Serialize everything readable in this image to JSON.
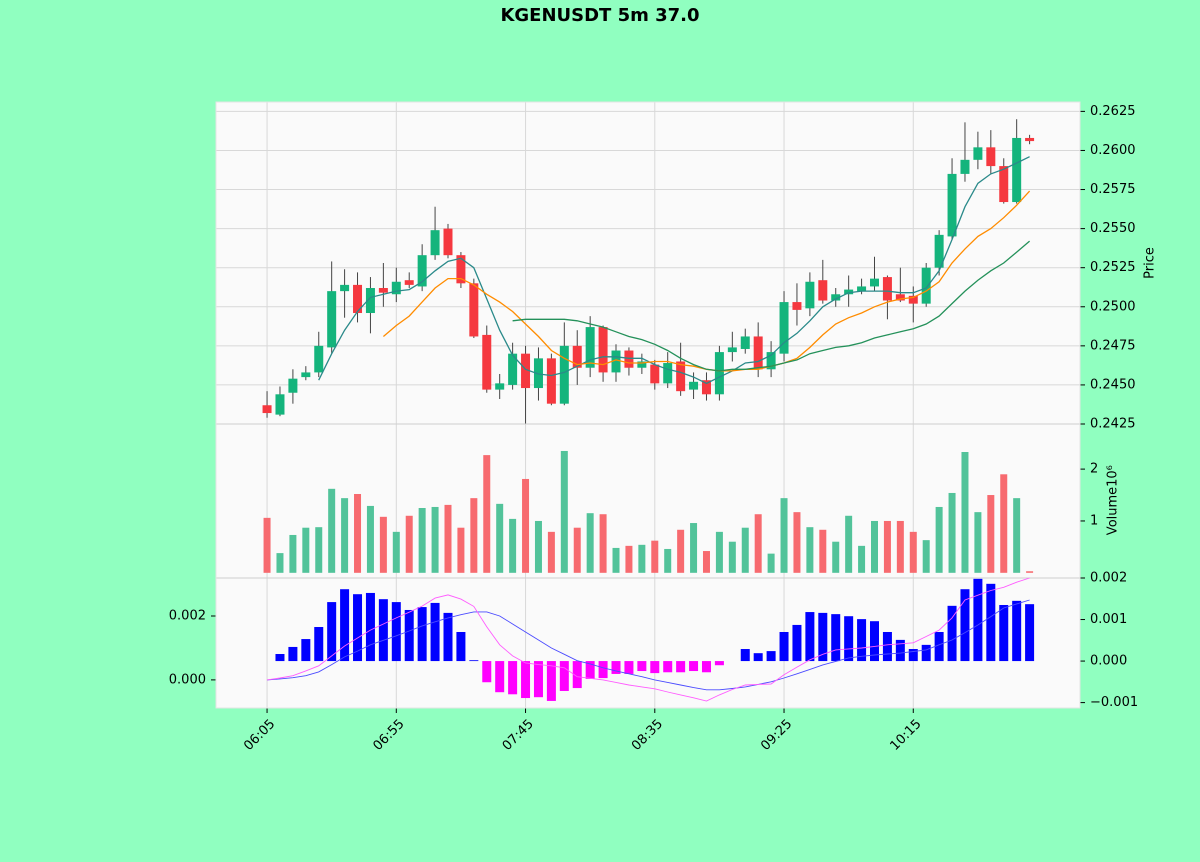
{
  "chart_data": [
    {
      "type": "candlestick",
      "title": "KGENUSDT 5m 37.0",
      "ylabel": "Price",
      "xlim": [
        -3.95,
        62.9
      ],
      "ylim": [
        0.2425,
        0.2631
      ],
      "grid": true,
      "up_color": "#14b47c",
      "down_color": "#f5383f",
      "yticks": [
        {
          "value": 0.2425,
          "label": "0.2425"
        },
        {
          "value": 0.245,
          "label": "0.2450"
        },
        {
          "value": 0.2475,
          "label": "0.2475"
        },
        {
          "value": 0.25,
          "label": "0.2500"
        },
        {
          "value": 0.2525,
          "label": "0.2525"
        },
        {
          "value": 0.255,
          "label": "0.2550"
        },
        {
          "value": 0.2575,
          "label": "0.2575"
        },
        {
          "value": 0.26,
          "label": "0.2600"
        },
        {
          "value": 0.2625,
          "label": "0.2625"
        }
      ],
      "open": [
        0.2437,
        0.2431,
        0.2445,
        0.2455,
        0.2458,
        0.2474,
        0.251,
        0.2514,
        0.2496,
        0.2512,
        0.2508,
        0.2517,
        0.2513,
        0.2533,
        0.255,
        0.2533,
        0.2515,
        0.2482,
        0.2447,
        0.245,
        0.247,
        0.2448,
        0.2467,
        0.2438,
        0.2475,
        0.2461,
        0.2487,
        0.2458,
        0.2472,
        0.2461,
        0.2463,
        0.2451,
        0.2465,
        0.2447,
        0.2453,
        0.2444,
        0.2471,
        0.2473,
        0.2481,
        0.246,
        0.247,
        0.2503,
        0.2499,
        0.2517,
        0.2504,
        0.2508,
        0.251,
        0.2513,
        0.2519,
        0.2508,
        0.2507,
        0.2502,
        0.2525,
        0.2545,
        0.2585,
        0.2594,
        0.2602,
        0.259,
        0.2567,
        0.2608
      ],
      "high": [
        0.2446,
        0.2449,
        0.246,
        0.2462,
        0.2484,
        0.2529,
        0.2524,
        0.2522,
        0.2519,
        0.2528,
        0.2525,
        0.2522,
        0.254,
        0.2564,
        0.2553,
        0.2535,
        0.2518,
        0.2488,
        0.2457,
        0.2477,
        0.2475,
        0.2474,
        0.247,
        0.249,
        0.2485,
        0.2494,
        0.2488,
        0.2476,
        0.2474,
        0.247,
        0.2466,
        0.2471,
        0.2477,
        0.2458,
        0.2458,
        0.2475,
        0.2484,
        0.2486,
        0.249,
        0.2478,
        0.251,
        0.2515,
        0.2522,
        0.253,
        0.2512,
        0.252,
        0.2518,
        0.2532,
        0.252,
        0.2525,
        0.2513,
        0.2528,
        0.2549,
        0.2595,
        0.2618,
        0.2612,
        0.2613,
        0.2595,
        0.262,
        0.261
      ],
      "low": [
        0.2429,
        0.243,
        0.2438,
        0.2453,
        0.2455,
        0.247,
        0.2493,
        0.249,
        0.2483,
        0.25,
        0.2503,
        0.2512,
        0.251,
        0.253,
        0.2531,
        0.2512,
        0.248,
        0.2445,
        0.2441,
        0.2447,
        0.2425,
        0.244,
        0.2437,
        0.2437,
        0.245,
        0.2455,
        0.2452,
        0.2452,
        0.2456,
        0.2457,
        0.2447,
        0.2448,
        0.2443,
        0.2441,
        0.244,
        0.244,
        0.2465,
        0.247,
        0.2455,
        0.2455,
        0.2465,
        0.2488,
        0.2494,
        0.2502,
        0.25,
        0.25,
        0.2508,
        0.251,
        0.2492,
        0.2503,
        0.249,
        0.25,
        0.252,
        0.2543,
        0.258,
        0.2588,
        0.2585,
        0.2566,
        0.2566,
        0.2604
      ],
      "close": [
        0.2432,
        0.2444,
        0.2454,
        0.2458,
        0.2475,
        0.251,
        0.2514,
        0.2496,
        0.2512,
        0.2509,
        0.2516,
        0.2514,
        0.2533,
        0.2549,
        0.2533,
        0.2515,
        0.2481,
        0.2447,
        0.2451,
        0.247,
        0.2448,
        0.2467,
        0.2438,
        0.2475,
        0.2461,
        0.2487,
        0.2458,
        0.2472,
        0.2461,
        0.2465,
        0.2451,
        0.2464,
        0.2446,
        0.2452,
        0.2444,
        0.2471,
        0.2474,
        0.2481,
        0.246,
        0.2471,
        0.2503,
        0.2498,
        0.2516,
        0.2504,
        0.2508,
        0.2511,
        0.2513,
        0.2518,
        0.2504,
        0.2504,
        0.2502,
        0.2525,
        0.2546,
        0.2585,
        0.2594,
        0.2602,
        0.259,
        0.2567,
        0.2608,
        0.2606
      ],
      "series": [
        {
          "color": "#2a8a8a",
          "values": [
            null,
            null,
            null,
            null,
            0.2453,
            0.247,
            0.2485,
            0.2497,
            0.2506,
            0.2508,
            0.251,
            0.2511,
            0.2516,
            0.2523,
            0.2529,
            0.2531,
            0.2525,
            0.2505,
            0.2485,
            0.2469,
            0.246,
            0.2457,
            0.2456,
            0.2458,
            0.2462,
            0.2466,
            0.2468,
            0.2468,
            0.2467,
            0.2467,
            0.2463,
            0.246,
            0.2458,
            0.2455,
            0.2451,
            0.2455,
            0.2459,
            0.2464,
            0.2465,
            0.2469,
            0.2477,
            0.2483,
            0.2491,
            0.25,
            0.2505,
            0.2509,
            0.251,
            0.251,
            0.251,
            0.2509,
            0.2509,
            0.2512,
            0.2523,
            0.2543,
            0.2564,
            0.2579,
            0.2585,
            0.2588,
            0.2592,
            0.2596
          ]
        },
        {
          "color": "#ff8c00",
          "values": [
            null,
            null,
            null,
            null,
            null,
            null,
            null,
            null,
            null,
            0.2481,
            0.2488,
            0.2494,
            0.2503,
            0.2512,
            0.2518,
            0.2518,
            0.2514,
            0.2508,
            0.2503,
            0.2497,
            0.2489,
            0.2481,
            0.2472,
            0.2467,
            0.2463,
            0.2464,
            0.2463,
            0.2466,
            0.2464,
            0.2464,
            0.2465,
            0.2465,
            0.2463,
            0.2462,
            0.246,
            0.2459,
            0.2459,
            0.246,
            0.246,
            0.2462,
            0.2464,
            0.2467,
            0.2474,
            0.2482,
            0.2489,
            0.2493,
            0.2496,
            0.25,
            0.2503,
            0.2505,
            0.2506,
            0.251,
            0.2516,
            0.2528,
            0.2537,
            0.2545,
            0.255,
            0.2557,
            0.2565,
            0.2574
          ]
        },
        {
          "color": "#24915a",
          "values": [
            null,
            null,
            null,
            null,
            null,
            null,
            null,
            null,
            null,
            null,
            null,
            null,
            null,
            null,
            null,
            null,
            null,
            null,
            null,
            0.2491,
            0.2492,
            0.2492,
            0.2492,
            0.2492,
            0.2491,
            0.2489,
            0.2487,
            0.2484,
            0.2481,
            0.2479,
            0.2476,
            0.2472,
            0.2467,
            0.2463,
            0.246,
            0.2459,
            0.246,
            0.246,
            0.2461,
            0.2462,
            0.2464,
            0.2466,
            0.247,
            0.2472,
            0.2474,
            0.2475,
            0.2477,
            0.248,
            0.2482,
            0.2484,
            0.2486,
            0.2489,
            0.2494,
            0.2502,
            0.251,
            0.2517,
            0.2523,
            0.2528,
            0.2535,
            0.2542
          ]
        }
      ]
    },
    {
      "type": "bar",
      "ylabel": "Volume",
      "offset_label": "10⁶",
      "xlim": [
        -3.95,
        62.9
      ],
      "ylim": [
        -0.1,
        2.87
      ],
      "yticks": [
        1,
        2
      ],
      "up_color": "#52c39a",
      "down_color": "#f76a6f",
      "values": [
        1.06,
        0.38,
        0.73,
        0.87,
        0.88,
        1.62,
        1.44,
        1.52,
        1.29,
        1.08,
        0.79,
        1.1,
        1.25,
        1.27,
        1.31,
        0.87,
        1.44,
        2.27,
        1.33,
        1.04,
        1.81,
        1.0,
        0.79,
        2.35,
        0.87,
        1.15,
        1.13,
        0.48,
        0.52,
        0.54,
        0.62,
        0.46,
        0.83,
        0.96,
        0.42,
        0.79,
        0.6,
        0.87,
        1.13,
        0.37,
        1.44,
        1.17,
        0.88,
        0.83,
        0.6,
        1.1,
        0.52,
        1.0,
        1.0,
        1.0,
        0.79,
        0.63,
        1.27,
        1.54,
        2.33,
        1.17,
        1.5,
        1.9,
        1.44,
        0.03
      ]
    },
    {
      "type": "macd",
      "xlim": [
        -3.95,
        62.9
      ],
      "categories": [
        "06:05",
        null,
        null,
        null,
        null,
        null,
        null,
        null,
        null,
        null,
        "06:55",
        null,
        null,
        null,
        null,
        null,
        null,
        null,
        null,
        null,
        "07:45",
        null,
        null,
        null,
        null,
        null,
        null,
        null,
        null,
        null,
        "08:35",
        null,
        null,
        null,
        null,
        null,
        null,
        null,
        null,
        null,
        "09:25",
        null,
        null,
        null,
        null,
        null,
        null,
        null,
        null,
        null,
        "10:15",
        null,
        null,
        null,
        null,
        null,
        null,
        null,
        null,
        null
      ],
      "ylim": [
        -0.00088,
        0.00319
      ],
      "yticks": [
        {
          "value": 0,
          "label": "0.000"
        },
        {
          "value": 0.002,
          "label": "0.002"
        }
      ],
      "y2lim": [
        -0.00113,
        0.002
      ],
      "y2ticks": [
        {
          "value": -0.001,
          "label": "−0.001"
        },
        {
          "value": 0,
          "label": "0.000"
        },
        {
          "value": 0.001,
          "label": "0.001"
        },
        {
          "value": 0.002,
          "label": "0.002"
        }
      ],
      "histogram": {
        "axis": "y2",
        "up_color": "#0000ff",
        "down_color": "#ff00ff",
        "values": [
          0,
          0.00017,
          0.00034,
          0.00053,
          0.00082,
          0.00142,
          0.00173,
          0.00161,
          0.00164,
          0.00149,
          0.00142,
          0.00123,
          0.0013,
          0.0014,
          0.00116,
          0.0007,
          2e-05,
          -0.00051,
          -0.00075,
          -0.0008,
          -0.00089,
          -0.00087,
          -0.00096,
          -0.00072,
          -0.00065,
          -0.00043,
          -0.00041,
          -0.00031,
          -0.00031,
          -0.00024,
          -0.00029,
          -0.00027,
          -0.00027,
          -0.00024,
          -0.00027,
          -0.0001,
          0,
          0.00029,
          0.00019,
          0.00024,
          0.0007,
          0.00087,
          0.00118,
          0.00116,
          0.00113,
          0.00108,
          0.00101,
          0.00096,
          0.0007,
          0.00051,
          0.00029,
          0.00039,
          0.0007,
          0.00133,
          0.00173,
          0.00198,
          0.00186,
          0.00135,
          0.00145,
          0.00137
        ]
      },
      "series": [
        {
          "color": "#4b4bff",
          "values": [
            0,
            3e-05,
            7e-05,
            0.00013,
            0.00025,
            0.00048,
            0.00072,
            0.0009,
            0.0011,
            0.00124,
            0.00138,
            0.00153,
            0.00169,
            0.00182,
            0.00194,
            0.00204,
            0.00213,
            0.00213,
            0.002,
            0.00175,
            0.0015,
            0.00125,
            0.001,
            0.0008,
            0.0006,
            0.0005,
            0.00038,
            0.00028,
            0.00019,
            0.0001,
            0,
            -8e-05,
            -0.00016,
            -0.00024,
            -0.00031,
            -0.00031,
            -0.00027,
            -0.00022,
            -0.00014,
            -6e-05,
            6e-05,
            0.00019,
            0.00033,
            0.00047,
            0.00058,
            0.00069,
            0.00074,
            0.00078,
            0.00081,
            0.00084,
            0.00089,
            0.00094,
            0.0011,
            0.00125,
            0.00148,
            0.00172,
            0.00198,
            0.00225,
            0.00238,
            0.0025
          ]
        },
        {
          "color": "#ff5cff",
          "values": [
            0,
            6e-05,
            0.00013,
            0.00028,
            0.00044,
            0.00075,
            0.00106,
            0.00131,
            0.00156,
            0.00175,
            0.00194,
            0.00212,
            0.00231,
            0.00256,
            0.00266,
            0.00253,
            0.0023,
            0.00166,
            0.0011,
            0.00075,
            0.00053,
            0.00048,
            0.00044,
            0.00038,
            0.0001,
            5e-05,
            0,
            -8e-05,
            -0.00016,
            -0.00022,
            -0.00028,
            -0.00038,
            -0.00047,
            -0.00056,
            -0.00066,
            -0.00047,
            -0.0003,
            -0.00016,
            -0.00014,
            -0.00013,
            0.00016,
            0.0004,
            0.00063,
            0.0008,
            0.00094,
            0.00097,
            0.001,
            0.00105,
            0.0011,
            0.00113,
            0.00116,
            0.00136,
            0.00156,
            0.00194,
            0.0025,
            0.00265,
            0.0028,
            0.0029,
            0.00306,
            0.00319
          ]
        }
      ]
    }
  ]
}
